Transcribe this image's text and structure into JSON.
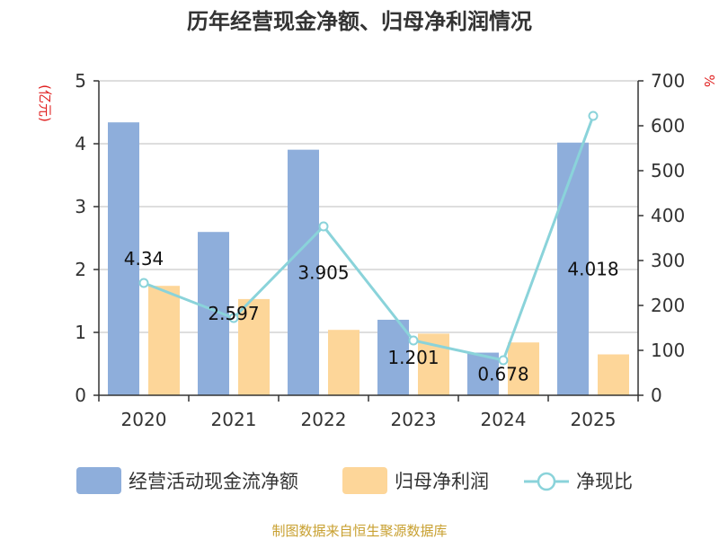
{
  "colors": {
    "bar_cashflow": "#8eaedb",
    "bar_profit": "#fdd699",
    "line_ratio": "#8ad3da",
    "grid": "#c9c9c9",
    "axis": "#333333",
    "unit_text": "#e02020",
    "source_text": "#c8a030"
  },
  "chart_data": {
    "type": "bar",
    "title": "历年经营现金净额、归母净利润情况",
    "categories": [
      "2020",
      "2021",
      "2022",
      "2023",
      "2024",
      "2025"
    ],
    "series": [
      {
        "name": "经营活动现金流净额",
        "type": "bar",
        "axis": "left",
        "values": [
          4.34,
          2.597,
          3.905,
          1.201,
          0.678,
          4.018
        ],
        "labels": [
          "4.34",
          "2.597",
          "3.905",
          "1.201",
          "0.678",
          "4.018"
        ]
      },
      {
        "name": "归母净利润",
        "type": "bar",
        "axis": "left",
        "values": [
          1.74,
          1.53,
          1.04,
          0.98,
          0.84,
          0.65
        ]
      },
      {
        "name": "净现比",
        "type": "line",
        "axis": "right",
        "values": [
          250,
          172,
          376,
          122,
          78,
          622
        ]
      }
    ],
    "y_left": {
      "label": "(亿元)",
      "min": 0,
      "max": 5,
      "ticks": [
        "0",
        "1",
        "2",
        "3",
        "4",
        "5"
      ]
    },
    "y_right": {
      "label": "%",
      "min": 0,
      "max": 700,
      "ticks": [
        "0",
        "100",
        "200",
        "300",
        "400",
        "500",
        "600",
        "700"
      ]
    },
    "grid": true,
    "legend_position": "bottom",
    "legend": [
      "经营活动现金流净额",
      "归母净利润",
      "净现比"
    ]
  },
  "source": "制图数据来自恒生聚源数据库"
}
